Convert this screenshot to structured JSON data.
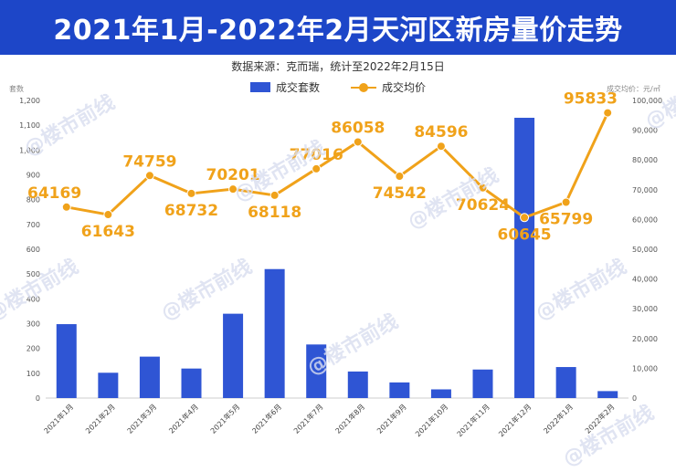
{
  "header": {
    "title": "2021年1月-2022年2月天河区新房量价走势",
    "source": "数据来源：克而瑞，统计至2022年2月15日"
  },
  "watermark": "@楼市前线",
  "colors": {
    "banner": "#1d46c8",
    "bar": "#2f55d4",
    "line": "#f0a21a",
    "label": "#f0a21a"
  },
  "chart_data": {
    "type": "bar+line",
    "title": "2021年1月-2022年2月天河区新房量价走势",
    "categories": [
      "2021年1月",
      "2021年2月",
      "2021年3月",
      "2021年4月",
      "2021年5月",
      "2021年6月",
      "2021年7月",
      "2021年8月",
      "2021年9月",
      "2021年10月",
      "2021年11月",
      "2021年12月",
      "2022年1月",
      "2022年2月"
    ],
    "series": [
      {
        "name": "成交套数",
        "type": "bar",
        "axis": "left",
        "values": [
          298,
          102,
          167,
          119,
          340,
          520,
          216,
          107,
          63,
          35,
          115,
          1130,
          125,
          28
        ]
      },
      {
        "name": "成交均价",
        "type": "line",
        "axis": "right",
        "values": [
          64169,
          61643,
          74759,
          68732,
          70201,
          68118,
          77016,
          86058,
          74542,
          84596,
          70624,
          60645,
          65799,
          95833
        ],
        "labels": [
          "64169",
          "61643",
          "74759",
          "68732",
          "70201",
          "68118",
          "77016",
          "86058",
          "74542",
          "84596",
          "70624",
          "60645",
          "65799",
          "95833"
        ]
      }
    ],
    "y_left": {
      "label": "套数",
      "range": [
        0,
        1200
      ],
      "ticks": [
        "0",
        "100",
        "200",
        "300",
        "400",
        "500",
        "600",
        "700",
        "800",
        "900",
        "1,000",
        "1,100",
        "1,200"
      ]
    },
    "y_right": {
      "label": "成交均价：元/㎡",
      "range": [
        0,
        100000
      ],
      "ticks": [
        "0",
        "10,000",
        "20,000",
        "30,000",
        "40,000",
        "50,000",
        "60,000",
        "70,000",
        "80,000",
        "90,000",
        "100,000"
      ]
    },
    "legend": [
      "成交套数",
      "成交均价"
    ],
    "legend_position": "top-center"
  }
}
